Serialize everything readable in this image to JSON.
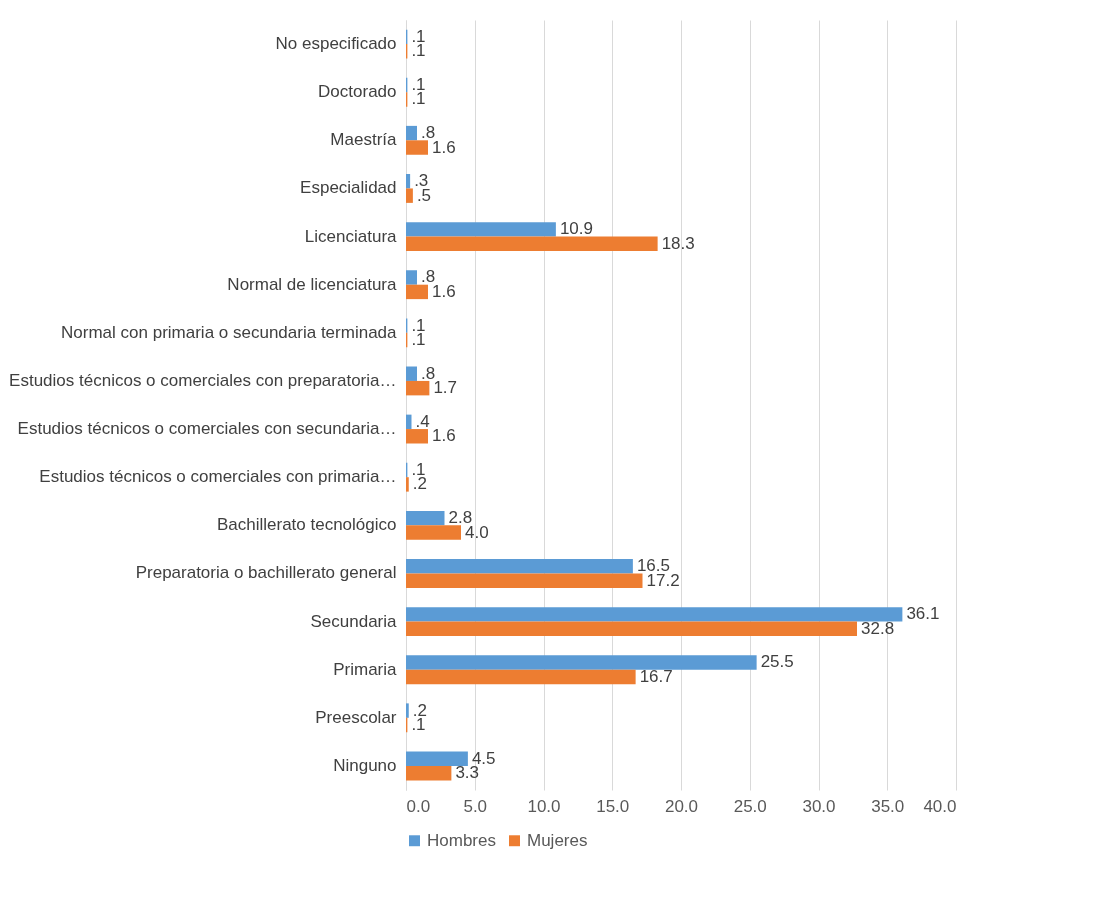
{
  "chart_data": {
    "type": "bar",
    "orientation": "horizontal",
    "categories": [
      "No especificado",
      "Doctorado",
      "Maestría",
      "Especialidad",
      "Licenciatura",
      "Normal de licenciatura",
      "Normal con primaria o secundaria terminada",
      "Estudios técnicos o comerciales con preparatoria…",
      "Estudios técnicos o comerciales con secundaria…",
      "Estudios técnicos o comerciales con primaria…",
      "Bachillerato tecnológico",
      "Preparatoria o bachillerato general",
      "Secundaria",
      "Primaria",
      "Preescolar",
      "Ninguno"
    ],
    "series": [
      {
        "name": "Hombres",
        "color": "#5b9bd5",
        "values": [
          0.1,
          0.1,
          0.8,
          0.3,
          10.9,
          0.8,
          0.1,
          0.8,
          0.4,
          0.1,
          2.8,
          16.5,
          36.1,
          25.5,
          0.2,
          4.5
        ],
        "value_labels": [
          ".1",
          ".1",
          ".8",
          ".3",
          "10.9",
          ".8",
          ".1",
          ".8",
          ".4",
          ".1",
          "2.8",
          "16.5",
          "36.1",
          "25.5",
          ".2",
          "4.5"
        ]
      },
      {
        "name": "Mujeres",
        "color": "#ed7d31",
        "values": [
          0.1,
          0.1,
          1.6,
          0.5,
          18.3,
          1.6,
          0.1,
          1.7,
          1.6,
          0.2,
          4.0,
          17.2,
          32.8,
          16.7,
          0.1,
          3.3
        ],
        "value_labels": [
          ".1",
          ".1",
          "1.6",
          ".5",
          "18.3",
          "1.6",
          ".1",
          "1.7",
          "1.6",
          ".2",
          "4.0",
          "17.2",
          "32.8",
          "16.7",
          ".1",
          "3.3"
        ]
      }
    ],
    "xlim": [
      0,
      40
    ],
    "xticks": [
      {
        "value": 0,
        "label": "0.0"
      },
      {
        "value": 5,
        "label": "5.0"
      },
      {
        "value": 10,
        "label": "10.0"
      },
      {
        "value": 15,
        "label": "15.0"
      },
      {
        "value": 20,
        "label": "20.0"
      },
      {
        "value": 25,
        "label": "25.0"
      },
      {
        "value": 30,
        "label": "30.0"
      },
      {
        "value": 35,
        "label": "35.0"
      },
      {
        "value": 40,
        "label": "40.0"
      }
    ],
    "grid": "x",
    "legend": "bottom"
  }
}
